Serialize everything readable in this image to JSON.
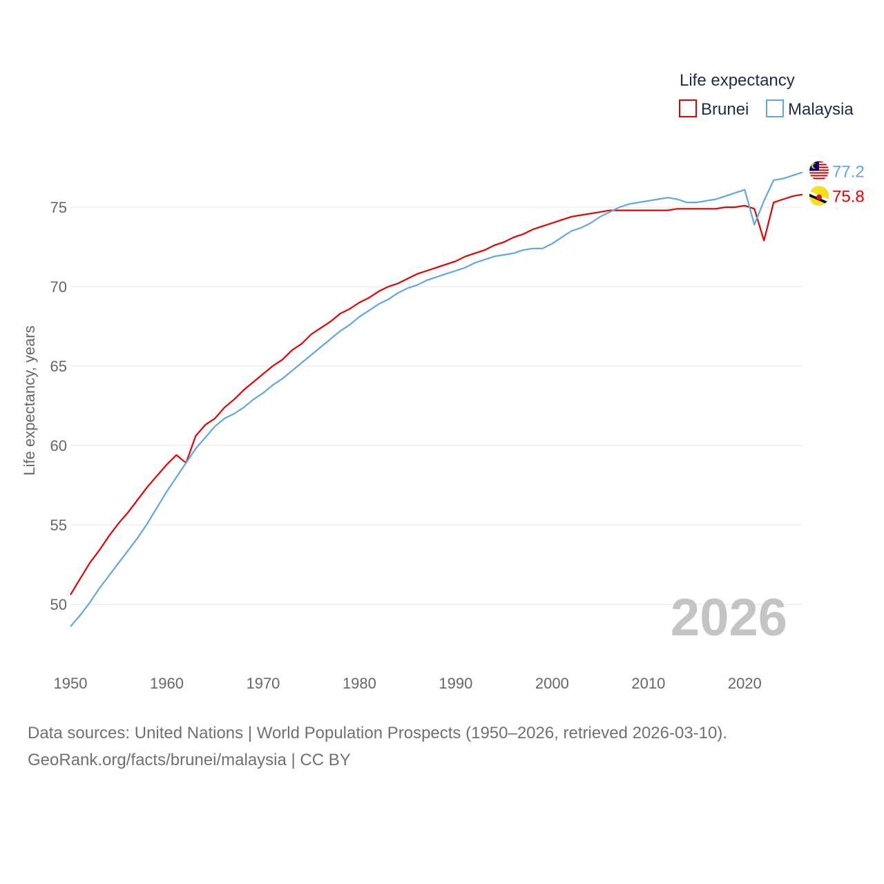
{
  "chart_data": {
    "type": "line",
    "title": "Life expectancy",
    "xlabel": "",
    "ylabel": "Life expectancy, years",
    "xlim": [
      1950,
      2026
    ],
    "ylim": [
      47.5,
      78.5
    ],
    "yticks": [
      50,
      55,
      60,
      65,
      70,
      75
    ],
    "xticks": [
      1950,
      1960,
      1970,
      1980,
      1990,
      2000,
      2010,
      2020
    ],
    "grid": true,
    "legend_position": "top-right",
    "watermark_year": "2026",
    "x": [
      1950,
      1951,
      1952,
      1953,
      1954,
      1955,
      1956,
      1957,
      1958,
      1959,
      1960,
      1961,
      1962,
      1963,
      1964,
      1965,
      1966,
      1967,
      1968,
      1969,
      1970,
      1971,
      1972,
      1973,
      1974,
      1975,
      1976,
      1977,
      1978,
      1979,
      1980,
      1981,
      1982,
      1983,
      1984,
      1985,
      1986,
      1987,
      1988,
      1989,
      1990,
      1991,
      1992,
      1993,
      1994,
      1995,
      1996,
      1997,
      1998,
      1999,
      2000,
      2001,
      2002,
      2003,
      2004,
      2005,
      2006,
      2007,
      2008,
      2009,
      2010,
      2011,
      2012,
      2013,
      2014,
      2015,
      2016,
      2017,
      2018,
      2019,
      2020,
      2021,
      2022,
      2023,
      2024,
      2025,
      2026
    ],
    "series": [
      {
        "name": "Brunei",
        "color": "#e60000",
        "end_label": "75.8",
        "flag": "brunei-flag-icon",
        "values": [
          50.6,
          51.6,
          52.6,
          53.4,
          54.3,
          55.1,
          55.8,
          56.6,
          57.4,
          58.1,
          58.8,
          59.4,
          58.9,
          60.6,
          61.3,
          61.7,
          62.4,
          62.9,
          63.5,
          64.0,
          64.5,
          65.0,
          65.4,
          66.0,
          66.4,
          67.0,
          67.4,
          67.8,
          68.3,
          68.6,
          69.0,
          69.3,
          69.7,
          70.0,
          70.2,
          70.5,
          70.8,
          71.0,
          71.2,
          71.4,
          71.6,
          71.9,
          72.1,
          72.3,
          72.6,
          72.8,
          73.1,
          73.3,
          73.6,
          73.8,
          74.0,
          74.2,
          74.4,
          74.5,
          74.6,
          74.7,
          74.8,
          74.8,
          74.8,
          74.8,
          74.8,
          74.8,
          74.8,
          74.9,
          74.9,
          74.9,
          74.9,
          74.9,
          75.0,
          75.0,
          75.1,
          74.9,
          72.9,
          75.3,
          75.5,
          75.7,
          75.8
        ]
      },
      {
        "name": "Malaysia",
        "color": "#5fa6e3",
        "end_label": "77.2",
        "flag": "malaysia-flag-icon",
        "values": [
          48.6,
          49.3,
          50.1,
          51.0,
          51.8,
          52.6,
          53.4,
          54.2,
          55.1,
          56.1,
          57.1,
          58.0,
          58.9,
          59.8,
          60.5,
          61.2,
          61.7,
          62.0,
          62.4,
          62.9,
          63.3,
          63.8,
          64.2,
          64.7,
          65.2,
          65.7,
          66.2,
          66.7,
          67.2,
          67.6,
          68.1,
          68.5,
          68.9,
          69.2,
          69.6,
          69.9,
          70.1,
          70.4,
          70.6,
          70.8,
          71.0,
          71.2,
          71.5,
          71.7,
          71.9,
          72.0,
          72.1,
          72.3,
          72.4,
          72.4,
          72.7,
          73.1,
          73.5,
          73.7,
          74.0,
          74.4,
          74.7,
          75.0,
          75.2,
          75.3,
          75.4,
          75.5,
          75.6,
          75.5,
          75.3,
          75.3,
          75.4,
          75.5,
          75.7,
          75.9,
          76.1,
          73.9,
          75.4,
          76.7,
          76.8,
          77.0,
          77.2
        ]
      }
    ]
  },
  "footer": {
    "source_line": "Data sources: United Nations | World Population Prospects (1950–2026, retrieved 2026-03-10).",
    "attribution_line": "GeoRank.org/facts/brunei/malaysia | CC BY"
  }
}
